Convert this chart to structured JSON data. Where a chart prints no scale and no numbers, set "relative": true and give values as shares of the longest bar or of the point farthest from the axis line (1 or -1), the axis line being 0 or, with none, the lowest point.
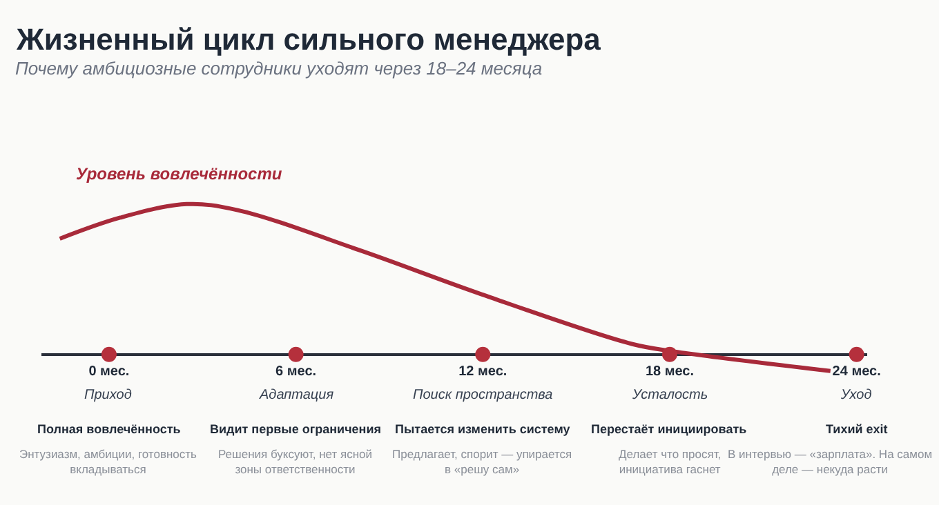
{
  "chart_data": {
    "type": "line",
    "title": "Жизненный цикл сильного менеджера",
    "subtitle": "Почему амбициозные сотрудники уходят через 18–24 месяца",
    "relative": true,
    "xlim": [
      -2.17,
      24.34
    ],
    "xticks": [
      {
        "value": 0,
        "label": "0 мес."
      },
      {
        "value": 6,
        "label": "6 мес."
      },
      {
        "value": 12,
        "label": "12 мес."
      },
      {
        "value": 18,
        "label": "18 мес."
      },
      {
        "value": 24,
        "label": "24 мес."
      }
    ],
    "grid": false,
    "legend": false,
    "series": [
      {
        "name": "Уровень вовлечённости",
        "color": "#a82a3a",
        "marker": "none",
        "line_style": "solid",
        "x": [
          -1.58,
          0.36,
          2.49,
          4.13,
          8.09,
          11.96,
          16.78,
          18.13,
          23.16
        ],
        "values": [
          0.77,
          0.91,
          1,
          0.96,
          0.69,
          0.4,
          0.07,
          0.02,
          -0.11
        ]
      },
      {
        "color": "#b5303c",
        "type": "scatter",
        "marker": "circle",
        "x": [
          0,
          6,
          12,
          18,
          24
        ],
        "values": [
          0,
          0,
          0,
          0,
          0
        ]
      }
    ],
    "annotations": [
      "Приход",
      "Полная вовлечённость",
      "Энтузиазм, амбиции, готовность\nвкладываться",
      "Адаптация",
      "Видит первые ограничения",
      "Решения буксуют, нет ясной\nзоны ответственности",
      "Поиск пространства",
      "Пытается изменить систему",
      "Предлагает, спорит — упирается\nв «решу сам»",
      "Усталость",
      "Перестаёт инициировать",
      "Делает что просят,\nинициатива гаснет",
      "Уход",
      "Тихий exit",
      "В интервью — «зарплата». На самом\nделе — некуда расти"
    ]
  }
}
